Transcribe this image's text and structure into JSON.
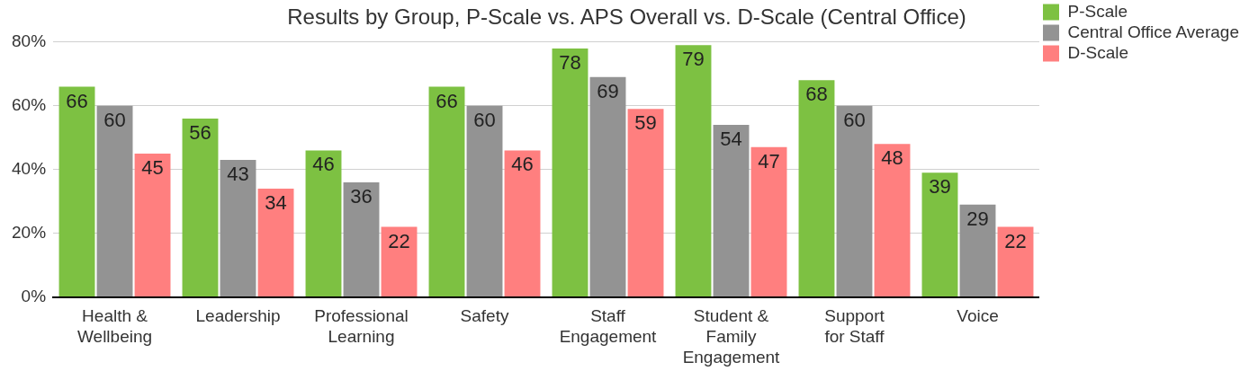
{
  "chart_data": {
    "type": "bar",
    "title": "Results by Group, P-Scale vs. APS Overall vs. D-Scale (Central Office)",
    "categories": [
      "Health & Wellbeing",
      "Leadership",
      "Professional Learning",
      "Safety",
      "Staff Engagement",
      "Student & Family Engagement",
      "Support for Staff",
      "Voice"
    ],
    "series": [
      {
        "name": "P-Scale",
        "color": "#7dc142",
        "values": [
          66,
          56,
          46,
          66,
          78,
          79,
          68,
          39
        ]
      },
      {
        "name": "Central Office Average",
        "color": "#939393",
        "values": [
          60,
          43,
          36,
          60,
          69,
          54,
          60,
          29
        ]
      },
      {
        "name": "D-Scale",
        "color": "#ff7f7f",
        "values": [
          45,
          34,
          22,
          46,
          59,
          47,
          48,
          22
        ]
      }
    ],
    "ylim": [
      0,
      80
    ],
    "yticks": [
      {
        "value": 0,
        "label": "0%"
      },
      {
        "value": 20,
        "label": "20%"
      },
      {
        "value": 40,
        "label": "40%"
      },
      {
        "value": 60,
        "label": "60%"
      },
      {
        "value": 80,
        "label": "80%"
      }
    ],
    "grid": "y",
    "legend": "top right",
    "data_labels": true
  }
}
